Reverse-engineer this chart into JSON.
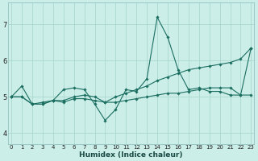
{
  "xlabel": "Humidex (Indice chaleur)",
  "bg_color": "#cceee8",
  "grid_color": "#aad8d0",
  "line_color": "#1a6e60",
  "x_ticks": [
    0,
    1,
    2,
    3,
    4,
    5,
    6,
    7,
    8,
    9,
    10,
    11,
    12,
    13,
    14,
    15,
    16,
    17,
    18,
    19,
    20,
    21,
    22,
    23
  ],
  "y_ticks": [
    4,
    5,
    6,
    7
  ],
  "ylim": [
    3.7,
    7.6
  ],
  "xlim": [
    -0.3,
    23.3
  ],
  "lines": [
    [
      5.0,
      5.3,
      4.8,
      4.8,
      4.9,
      5.2,
      5.25,
      5.2,
      4.8,
      4.35,
      4.65,
      5.2,
      5.15,
      5.5,
      7.2,
      6.65,
      5.75,
      5.2,
      5.25,
      5.15,
      5.15,
      5.05,
      5.05,
      6.35
    ],
    [
      5.0,
      5.0,
      4.8,
      4.85,
      4.9,
      4.9,
      5.0,
      5.05,
      5.0,
      4.85,
      5.0,
      5.1,
      5.2,
      5.3,
      5.45,
      5.55,
      5.65,
      5.75,
      5.8,
      5.85,
      5.9,
      5.95,
      6.05,
      6.35
    ],
    [
      5.0,
      5.0,
      4.8,
      4.8,
      4.9,
      4.85,
      4.95,
      4.95,
      4.9,
      4.85,
      4.85,
      4.9,
      4.95,
      5.0,
      5.05,
      5.1,
      5.1,
      5.15,
      5.2,
      5.25,
      5.25,
      5.25,
      5.05,
      5.05
    ]
  ]
}
